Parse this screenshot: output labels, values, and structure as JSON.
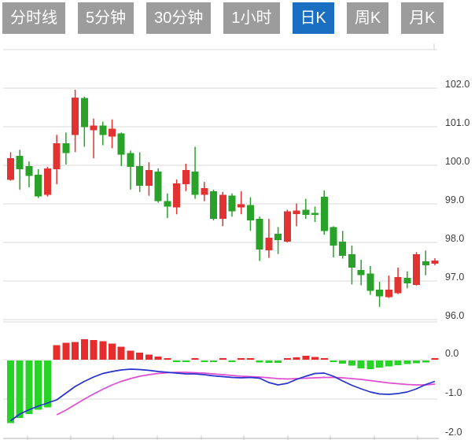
{
  "tabs": {
    "items": [
      {
        "id": "time-line",
        "label": "分时线",
        "active": false
      },
      {
        "id": "5min",
        "label": "5分钟",
        "active": false
      },
      {
        "id": "30min",
        "label": "30分钟",
        "active": false
      },
      {
        "id": "1hour",
        "label": "1小时",
        "active": false
      },
      {
        "id": "daily-k",
        "label": "日K",
        "active": true
      },
      {
        "id": "weekly-k",
        "label": "周K",
        "active": false
      },
      {
        "id": "monthly-k",
        "label": "月K",
        "active": false
      }
    ]
  },
  "colors": {
    "background": "#ffffff",
    "tab_bg": "#9c9c9c",
    "tab_active_bg": "#1a6fc2",
    "tab_text": "#ffffff",
    "bull_red": "#e23333",
    "bear_green": "#2aa22a",
    "macd_hist_red": "#e62c2c",
    "macd_hist_green": "#26d326",
    "dif_line": "#2633cc",
    "dea_line": "#e04fd0",
    "grid": "#d9d9d9",
    "grid_faint": "#e2e2e2",
    "axis_line": "#c2c2c2",
    "axis_text": "#3d3d3d"
  },
  "chart_data": {
    "type": "candlestick",
    "title": "",
    "grid": "horizontal-only",
    "legend": "none",
    "panes": [
      {
        "name": "price",
        "ylim": [
          95.94,
          102.95
        ],
        "yticks": [
          {
            "v": 102,
            "label": "102.0"
          },
          {
            "v": 101,
            "label": "101.0"
          },
          {
            "v": 100,
            "label": "100.0"
          },
          {
            "v": 99,
            "label": "99.0"
          },
          {
            "v": 98,
            "label": "98.0"
          },
          {
            "v": 97,
            "label": "97.0"
          },
          {
            "v": 96,
            "label": "96.0"
          }
        ],
        "candles": [
          {
            "o": 99.62,
            "h": 100.34,
            "l": 99.6,
            "c": 100.18
          },
          {
            "o": 100.24,
            "h": 100.4,
            "l": 99.37,
            "c": 99.9
          },
          {
            "o": 99.98,
            "h": 100.1,
            "l": 99.43,
            "c": 99.72
          },
          {
            "o": 99.76,
            "h": 99.9,
            "l": 99.15,
            "c": 99.19
          },
          {
            "o": 99.23,
            "h": 99.96,
            "l": 99.19,
            "c": 99.92
          },
          {
            "o": 99.9,
            "h": 100.79,
            "l": 99.51,
            "c": 100.57
          },
          {
            "o": 100.57,
            "h": 100.85,
            "l": 100.02,
            "c": 100.32
          },
          {
            "o": 100.79,
            "h": 101.96,
            "l": 100.34,
            "c": 101.76
          },
          {
            "o": 101.74,
            "h": 101.78,
            "l": 100.48,
            "c": 100.99
          },
          {
            "o": 100.91,
            "h": 101.21,
            "l": 100.18,
            "c": 101.03
          },
          {
            "o": 101.03,
            "h": 101.13,
            "l": 100.52,
            "c": 100.79
          },
          {
            "o": 100.75,
            "h": 101.19,
            "l": 100.44,
            "c": 100.95
          },
          {
            "o": 100.83,
            "h": 100.85,
            "l": 99.98,
            "c": 100.28
          },
          {
            "o": 100.32,
            "h": 100.38,
            "l": 99.37,
            "c": 99.96
          },
          {
            "o": 99.98,
            "h": 100.34,
            "l": 99.31,
            "c": 99.47
          },
          {
            "o": 99.47,
            "h": 100.08,
            "l": 99.21,
            "c": 99.88
          },
          {
            "o": 99.84,
            "h": 99.92,
            "l": 99.03,
            "c": 99.07
          },
          {
            "o": 99.07,
            "h": 99.27,
            "l": 98.63,
            "c": 98.93
          },
          {
            "o": 98.91,
            "h": 99.63,
            "l": 98.73,
            "c": 99.53
          },
          {
            "o": 99.51,
            "h": 100.04,
            "l": 99.33,
            "c": 99.88
          },
          {
            "o": 99.84,
            "h": 100.48,
            "l": 99.13,
            "c": 99.23
          },
          {
            "o": 99.23,
            "h": 99.57,
            "l": 99.07,
            "c": 99.41
          },
          {
            "o": 99.33,
            "h": 99.37,
            "l": 98.57,
            "c": 98.61
          },
          {
            "o": 98.61,
            "h": 99.31,
            "l": 98.42,
            "c": 99.23
          },
          {
            "o": 99.21,
            "h": 99.27,
            "l": 98.67,
            "c": 98.81
          },
          {
            "o": 98.91,
            "h": 99.33,
            "l": 98.73,
            "c": 98.99
          },
          {
            "o": 98.97,
            "h": 99.17,
            "l": 98.3,
            "c": 98.57
          },
          {
            "o": 98.61,
            "h": 98.67,
            "l": 97.52,
            "c": 97.82
          },
          {
            "o": 97.8,
            "h": 98.61,
            "l": 97.6,
            "c": 98.12
          },
          {
            "o": 98.22,
            "h": 98.4,
            "l": 97.7,
            "c": 98.06
          },
          {
            "o": 98.02,
            "h": 98.85,
            "l": 98.0,
            "c": 98.81
          },
          {
            "o": 98.73,
            "h": 99.01,
            "l": 98.42,
            "c": 98.83
          },
          {
            "o": 98.85,
            "h": 99.13,
            "l": 98.61,
            "c": 98.71
          },
          {
            "o": 98.77,
            "h": 98.93,
            "l": 98.53,
            "c": 98.71
          },
          {
            "o": 99.18,
            "h": 99.35,
            "l": 98.2,
            "c": 98.3
          },
          {
            "o": 98.4,
            "h": 98.42,
            "l": 97.61,
            "c": 97.92
          },
          {
            "o": 98.02,
            "h": 98.3,
            "l": 97.58,
            "c": 97.65
          },
          {
            "o": 97.69,
            "h": 97.92,
            "l": 96.91,
            "c": 97.35
          },
          {
            "o": 97.29,
            "h": 97.55,
            "l": 96.89,
            "c": 97.15
          },
          {
            "o": 97.19,
            "h": 97.39,
            "l": 96.64,
            "c": 96.74
          },
          {
            "o": 96.78,
            "h": 96.98,
            "l": 96.33,
            "c": 96.6
          },
          {
            "o": 96.58,
            "h": 97.14,
            "l": 96.56,
            "c": 96.78
          },
          {
            "o": 96.68,
            "h": 97.35,
            "l": 96.66,
            "c": 97.1
          },
          {
            "o": 97.08,
            "h": 97.25,
            "l": 96.81,
            "c": 96.94
          },
          {
            "o": 96.9,
            "h": 97.75,
            "l": 96.88,
            "c": 97.69
          },
          {
            "o": 97.51,
            "h": 97.79,
            "l": 97.15,
            "c": 97.41
          },
          {
            "o": 97.45,
            "h": 97.59,
            "l": 97.41,
            "c": 97.53
          }
        ]
      },
      {
        "name": "macd",
        "ylim": [
          -2.05,
          0.15
        ],
        "yticks": [
          {
            "v": 0,
            "label": "0.0"
          },
          {
            "v": -1,
            "label": "-1.0"
          },
          {
            "v": -2,
            "label": "-2.0"
          }
        ],
        "hist": [
          -1.59,
          -1.46,
          -1.36,
          -1.25,
          -1.19,
          0.37,
          0.43,
          0.45,
          0.52,
          0.5,
          0.47,
          0.41,
          0.33,
          0.23,
          0.18,
          0.13,
          0.08,
          0.04,
          -0.03,
          -0.04,
          0.03,
          -0.02,
          -0.03,
          0.03,
          -0.03,
          0.02,
          0.04,
          -0.05,
          -0.06,
          -0.06,
          0.04,
          0.06,
          0.1,
          0.07,
          0.03,
          -0.04,
          -0.08,
          -0.13,
          -0.2,
          -0.22,
          -0.18,
          -0.15,
          -0.12,
          -0.09,
          -0.07,
          -0.05,
          0.04
        ],
        "dif": [
          -1.55,
          -1.38,
          -1.27,
          -1.18,
          -1.1,
          -1.02,
          -0.85,
          -0.68,
          -0.55,
          -0.44,
          -0.35,
          -0.3,
          -0.26,
          -0.24,
          -0.25,
          -0.27,
          -0.3,
          -0.32,
          -0.34,
          -0.36,
          -0.36,
          -0.38,
          -0.41,
          -0.43,
          -0.45,
          -0.46,
          -0.45,
          -0.47,
          -0.58,
          -0.64,
          -0.6,
          -0.5,
          -0.42,
          -0.35,
          -0.34,
          -0.42,
          -0.54,
          -0.65,
          -0.74,
          -0.82,
          -0.87,
          -0.88,
          -0.86,
          -0.82,
          -0.74,
          -0.63,
          -0.55
        ],
        "dea": [
          null,
          null,
          null,
          null,
          null,
          -1.4,
          -1.28,
          -1.14,
          -1.0,
          -0.87,
          -0.75,
          -0.64,
          -0.55,
          -0.48,
          -0.42,
          -0.38,
          -0.35,
          -0.33,
          -0.32,
          -0.32,
          -0.33,
          -0.34,
          -0.36,
          -0.38,
          -0.4,
          -0.42,
          -0.43,
          -0.44,
          -0.46,
          -0.48,
          -0.49,
          -0.48,
          -0.47,
          -0.46,
          -0.45,
          -0.45,
          -0.46,
          -0.48,
          -0.5,
          -0.53,
          -0.56,
          -0.59,
          -0.61,
          -0.63,
          -0.64,
          -0.64,
          -0.62
        ]
      }
    ]
  }
}
